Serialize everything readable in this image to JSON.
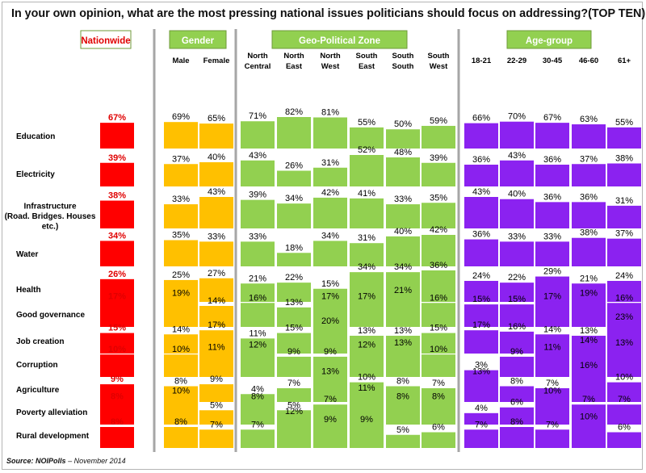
{
  "title": "In your own opinion, what are the most pressing national issues politicians should focus on addressing?(TOP TEN)",
  "source_label": "Source:",
  "source_org": "NOIPolls",
  "source_date": "– November 2014",
  "chart_data": {
    "type": "bar",
    "title": "In your own opinion, what are the most pressing national issues politicians should focus on addressing?(TOP TEN)",
    "categories": [
      "Education",
      "Electricity",
      "Infrastructure\n(Road. Bridges. Houses\netc.)",
      "Water",
      "Health",
      "Good governance",
      "Job creation",
      "Corruption",
      "Agriculture",
      "Poverty alleviation",
      "Rural development"
    ],
    "unit": "%",
    "groups": [
      {
        "name": "Nationwide",
        "color": "#ff0000",
        "header_bg": "#ffffff",
        "header_text": "#e00000",
        "series": [
          {
            "name": "",
            "values": [
              67,
              39,
              38,
              34,
              26,
              17,
              15,
              10,
              9,
              8,
              8
            ]
          }
        ]
      },
      {
        "name": "Gender",
        "color": "#ffc000",
        "header_bg": "#92d050",
        "header_text": "#ffffff",
        "series": [
          {
            "name": "Male",
            "values": [
              69,
              37,
              33,
              35,
              25,
              19,
              14,
              10,
              8,
              10,
              8
            ]
          },
          {
            "name": "Female",
            "values": [
              65,
              40,
              43,
              33,
              27,
              14,
              17,
              11,
              9,
              5,
              7
            ]
          }
        ]
      },
      {
        "name": "Geo-Political Zone",
        "color": "#92d050",
        "header_bg": "#92d050",
        "header_text": "#ffffff",
        "series": [
          {
            "name": "North Central",
            "values": [
              71,
              43,
              39,
              33,
              21,
              16,
              11,
              12,
              4,
              8,
              7
            ]
          },
          {
            "name": "North East",
            "values": [
              82,
              26,
              34,
              18,
              22,
              13,
              15,
              9,
              7,
              5,
              12
            ]
          },
          {
            "name": "North West",
            "values": [
              81,
              31,
              42,
              34,
              15,
              17,
              20,
              9,
              13,
              7,
              9
            ]
          },
          {
            "name": "South East",
            "values": [
              55,
              52,
              41,
              31,
              34,
              17,
              13,
              12,
              10,
              11,
              9
            ]
          },
          {
            "name": "South South",
            "values": [
              50,
              48,
              33,
              40,
              34,
              21,
              13,
              13,
              8,
              8,
              5
            ]
          },
          {
            "name": "South West",
            "values": [
              59,
              39,
              35,
              42,
              36,
              16,
              15,
              10,
              7,
              8,
              6
            ]
          }
        ]
      },
      {
        "name": "Age-group",
        "color": "#8b22f0",
        "header_bg": "#92d050",
        "header_text": "#ffffff",
        "series": [
          {
            "name": "18-21",
            "values": [
              66,
              36,
              43,
              36,
              24,
              15,
              17,
              3,
              13,
              4,
              7
            ]
          },
          {
            "name": "22-29",
            "values": [
              70,
              43,
              40,
              33,
              22,
              15,
              16,
              9,
              8,
              6,
              8
            ]
          },
          {
            "name": "30-45",
            "values": [
              67,
              36,
              36,
              33,
              29,
              17,
              14,
              11,
              7,
              10,
              7
            ]
          },
          {
            "name": "46-60",
            "values": [
              63,
              37,
              36,
              38,
              21,
              19,
              13,
              14,
              16,
              7,
              10
            ]
          },
          {
            "name": "61+",
            "values": [
              55,
              38,
              31,
              37,
              24,
              16,
              23,
              13,
              10,
              7,
              6
            ]
          }
        ]
      }
    ]
  }
}
